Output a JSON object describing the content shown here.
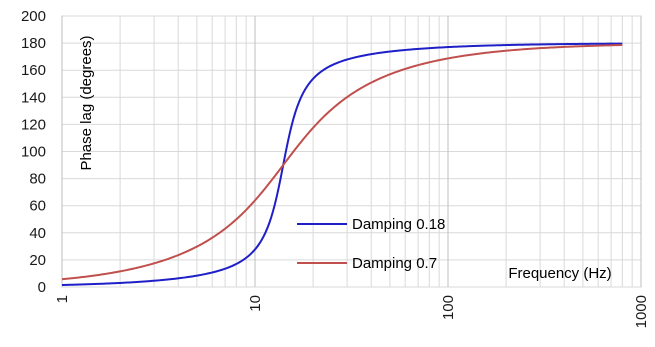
{
  "chart_data": {
    "type": "line",
    "title": "",
    "xlabel": "Frequency (Hz)",
    "ylabel": "Phase lag (degrees)",
    "x_scale": "log",
    "xlim": [
      1,
      1000
    ],
    "ylim": [
      0,
      200
    ],
    "x_ticks": [
      "1",
      "10",
      "100",
      "1000"
    ],
    "y_ticks": [
      "0",
      "20",
      "40",
      "60",
      "80",
      "100",
      "120",
      "140",
      "160",
      "180",
      "200"
    ],
    "grid": true,
    "legend_position": "lower-right",
    "natural_frequency_hz": 14,
    "x_max": 800,
    "series": [
      {
        "name": "Damping 0.18",
        "damping": 0.18,
        "color": "#1f1fc8"
      },
      {
        "name": "Damping 0.7",
        "damping": 0.7,
        "color": "#c0504d"
      }
    ]
  }
}
